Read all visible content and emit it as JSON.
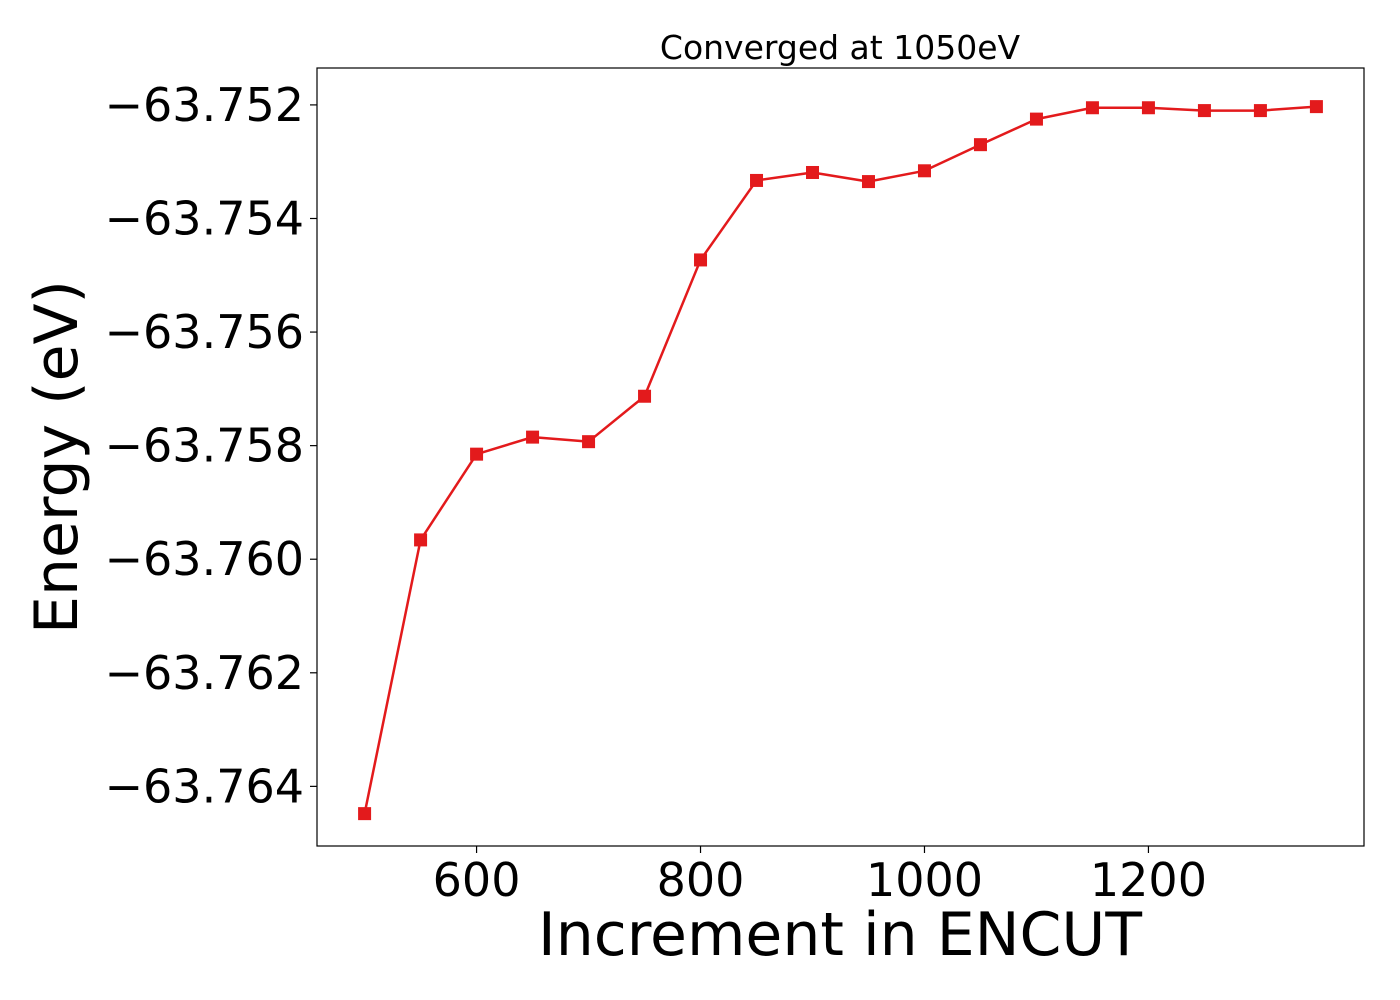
{
  "chart_data": {
    "type": "line",
    "title": "Converged at 1050eV",
    "xlabel": "Increment in ENCUT",
    "ylabel": "Energy (eV)",
    "xlim": [
      457.5,
      1392.5
    ],
    "ylim": [
      -63.76505,
      -63.75135
    ],
    "grid": false,
    "x_ticks": [
      600,
      800,
      1000,
      1200
    ],
    "x_tick_labels": [
      "600",
      "800",
      "1000",
      "1200"
    ],
    "y_ticks": [
      -63.764,
      -63.762,
      -63.76,
      -63.758,
      -63.756,
      -63.754,
      -63.752
    ],
    "y_tick_labels": [
      "−63.764",
      "−63.762",
      "−63.760",
      "−63.758",
      "−63.756",
      "−63.754",
      "−63.752"
    ],
    "series": [
      {
        "color": "#e31a1c",
        "marker": "square",
        "x": [
          500,
          550,
          600,
          650,
          700,
          750,
          800,
          850,
          900,
          950,
          1000,
          1050,
          1100,
          1150,
          1200,
          1250,
          1300,
          1350
        ],
        "y": [
          -63.76448,
          -63.75966,
          -63.75815,
          -63.75785,
          -63.75793,
          -63.75713,
          -63.75473,
          -63.75333,
          -63.75319,
          -63.75335,
          -63.75316,
          -63.7527,
          -63.75225,
          -63.75205,
          -63.75205,
          -63.7521,
          -63.7521,
          -63.75203
        ]
      }
    ]
  }
}
